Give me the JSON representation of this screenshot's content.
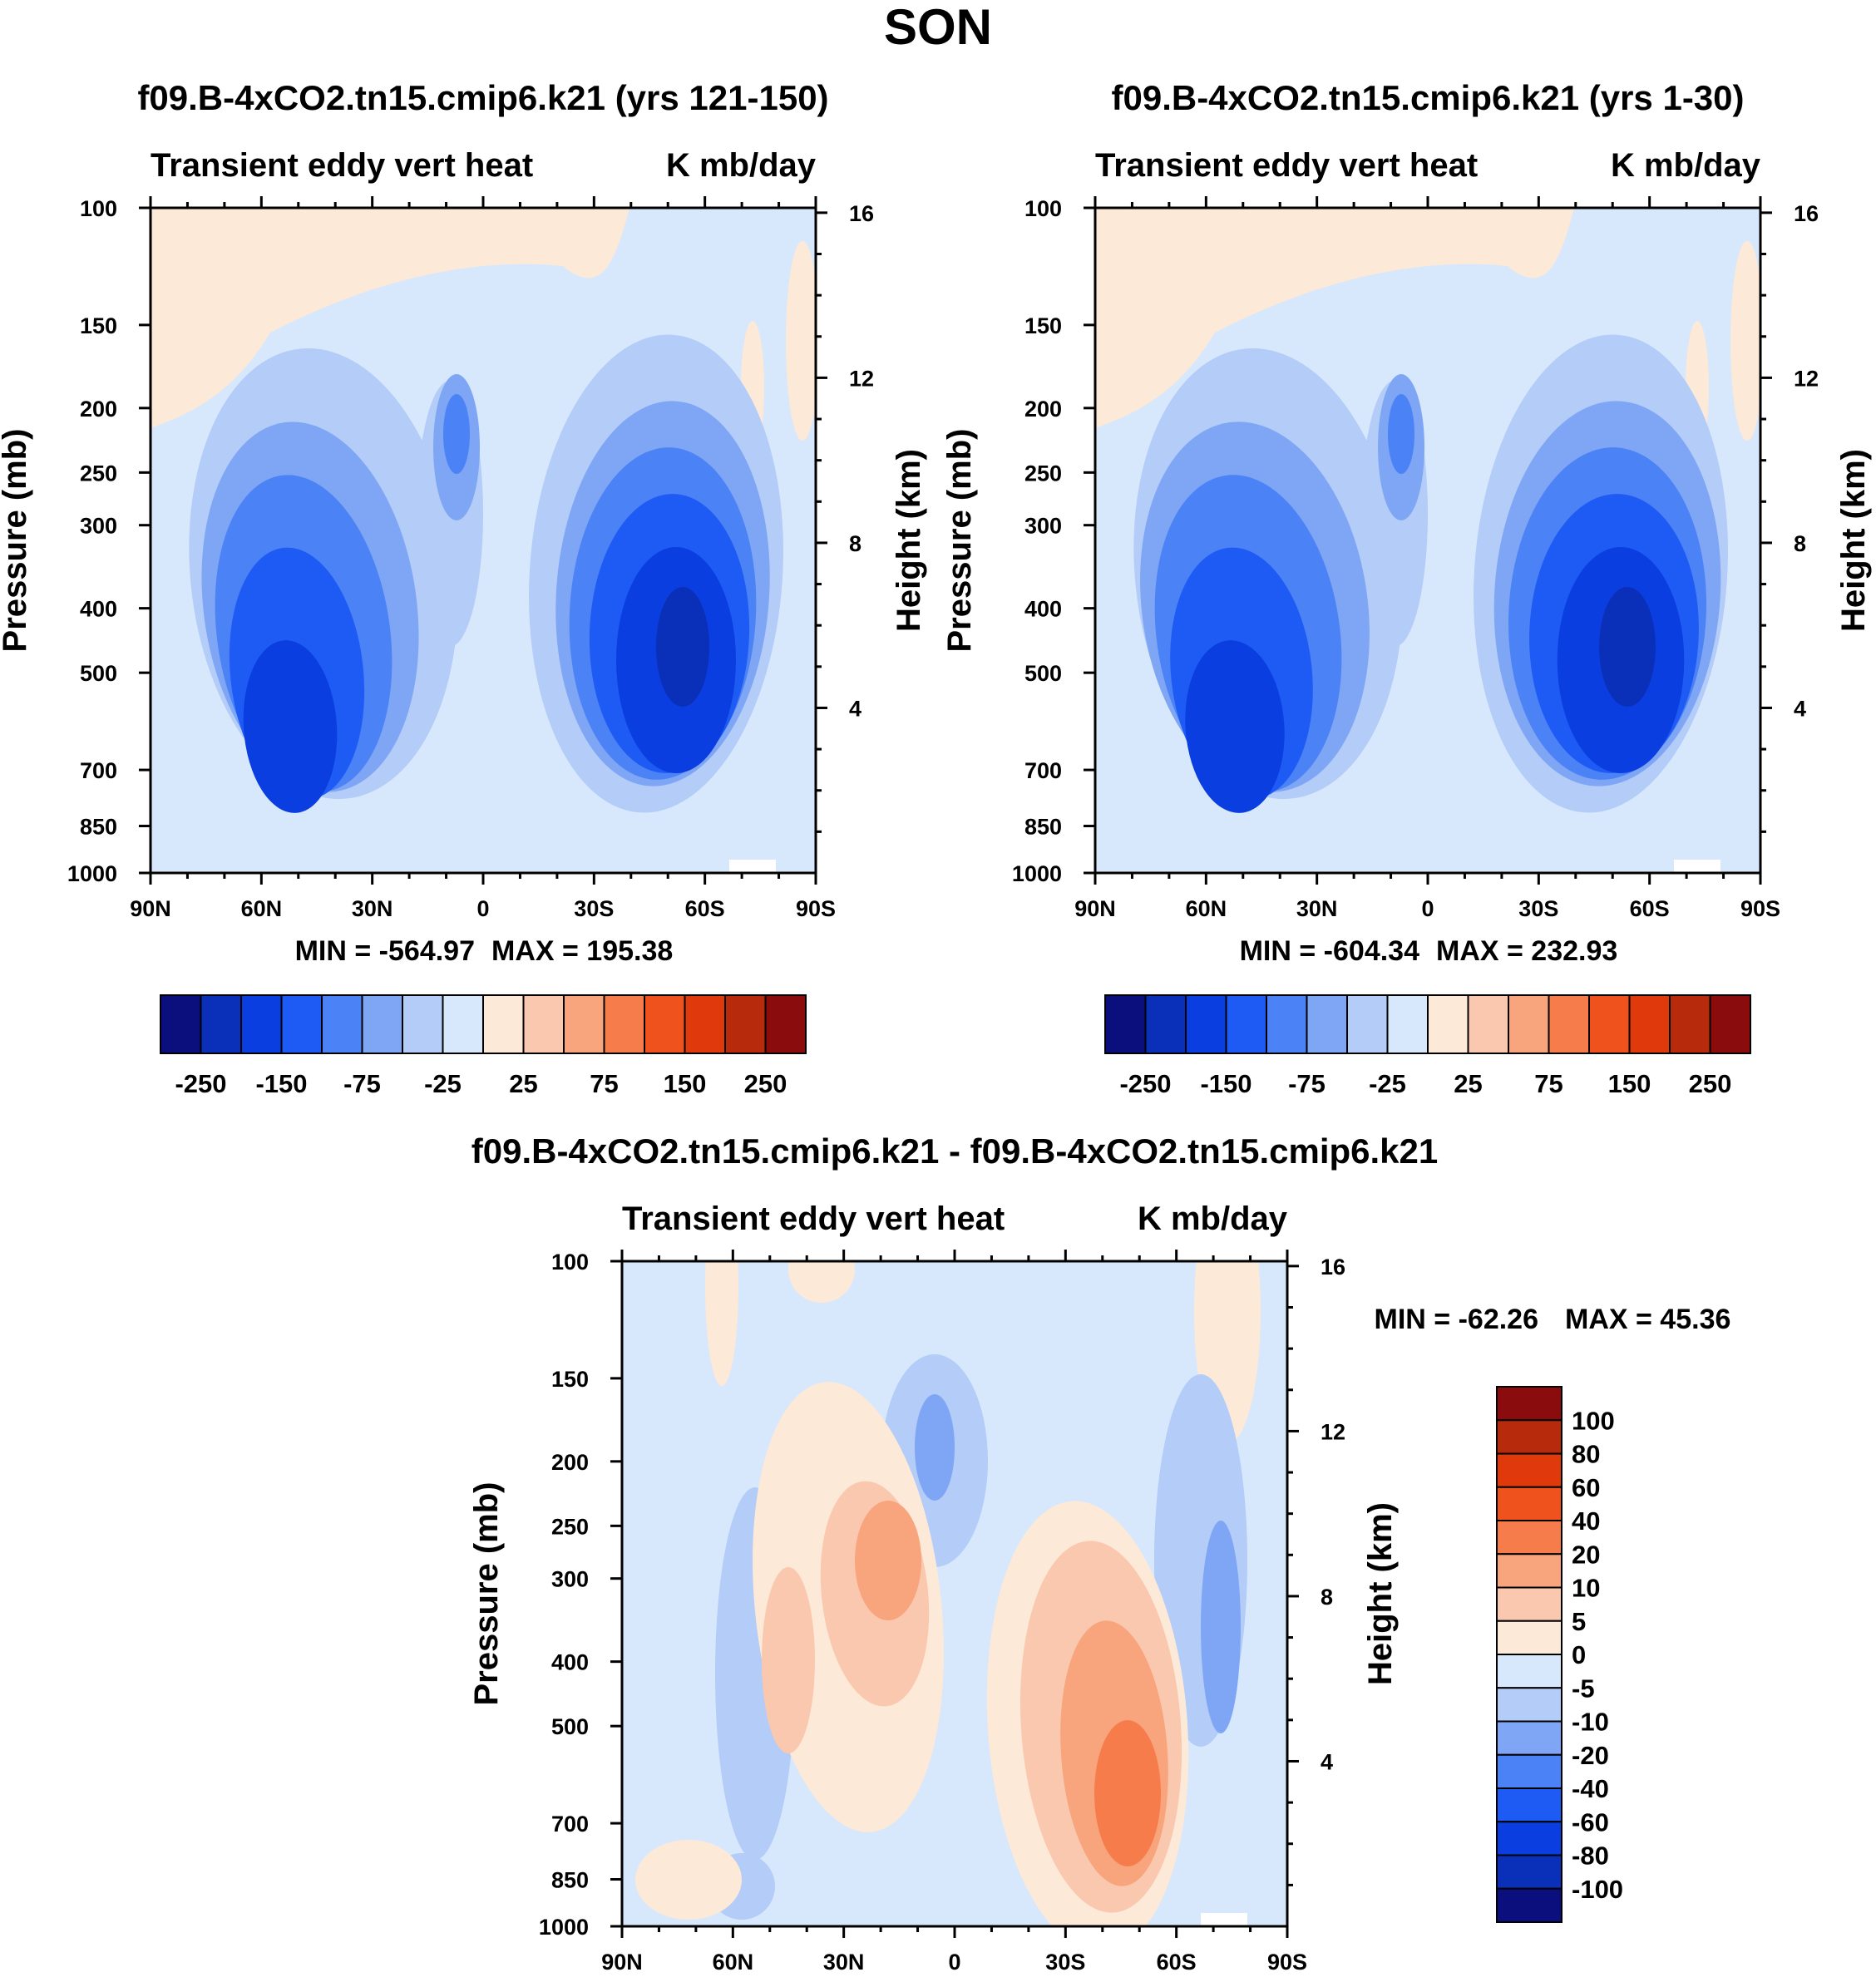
{
  "chart_data": {
    "type": "contour",
    "title": "SON",
    "variable": "Transient eddy vert heat",
    "units": "K mb/day",
    "x_ticks": [
      "90N",
      "60N",
      "30N",
      "0",
      "30S",
      "60S",
      "90S"
    ],
    "y_ticks": [
      100,
      150,
      200,
      250,
      300,
      400,
      500,
      700,
      850,
      1000
    ],
    "ylim": [
      1000,
      100
    ],
    "ylabel": "Pressure (mb)",
    "y2_ticks": [
      16,
      12,
      8,
      4
    ],
    "y2label": "Height (km)",
    "panels": [
      {
        "case": "f09.B-4xCO2.tn15.cmip6.k21 (yrs 121-150)",
        "variable": "Transient eddy vert heat",
        "units": "K mb/day",
        "min_label": "MIN = -564.97",
        "max_label": "MAX = 195.38",
        "min": -564.97,
        "max": 195.38,
        "colorbar_labels": [
          "-250",
          "-150",
          "-75",
          "-25",
          "25",
          "75",
          "150",
          "250"
        ],
        "levels": [
          -300,
          -250,
          -200,
          -150,
          -100,
          -75,
          -50,
          -25,
          0,
          25,
          50,
          75,
          100,
          150,
          200,
          250,
          300
        ]
      },
      {
        "case": "f09.B-4xCO2.tn15.cmip6.k21 (yrs 1-30)",
        "variable": "Transient eddy vert heat",
        "units": "K mb/day",
        "min_label": "MIN = -604.34",
        "max_label": "MAX = 232.93",
        "min": -604.34,
        "max": 232.93,
        "colorbar_labels": [
          "-250",
          "-150",
          "-75",
          "-25",
          "25",
          "75",
          "150",
          "250"
        ],
        "levels": [
          -300,
          -250,
          -200,
          -150,
          -100,
          -75,
          -50,
          -25,
          0,
          25,
          50,
          75,
          100,
          150,
          200,
          250,
          300
        ]
      },
      {
        "case": "f09.B-4xCO2.tn15.cmip6.k21 - f09.B-4xCO2.tn15.cmip6.k21",
        "variable": "Transient eddy vert heat",
        "units": "K mb/day",
        "min_label": "MIN = -62.26",
        "max_label": "MAX =  45.36",
        "min": -62.26,
        "max": 45.36,
        "colorbar_labels": [
          "100",
          "80",
          "60",
          "40",
          "20",
          "10",
          "5",
          "0",
          "-5",
          "-10",
          "-20",
          "-40",
          "-60",
          "-80",
          "-100"
        ]
      }
    ],
    "palette": [
      "#0b0f7d",
      "#0a2fb8",
      "#0a3ee0",
      "#1e5bf5",
      "#4b82f5",
      "#7fa6f5",
      "#b3ccf8",
      "#d8e8fc",
      "#fde9d8",
      "#fac8ae",
      "#f8a47c",
      "#f77c4c",
      "#f0521e",
      "#e03a0c",
      "#b82a0c",
      "#8a0c0c"
    ]
  }
}
